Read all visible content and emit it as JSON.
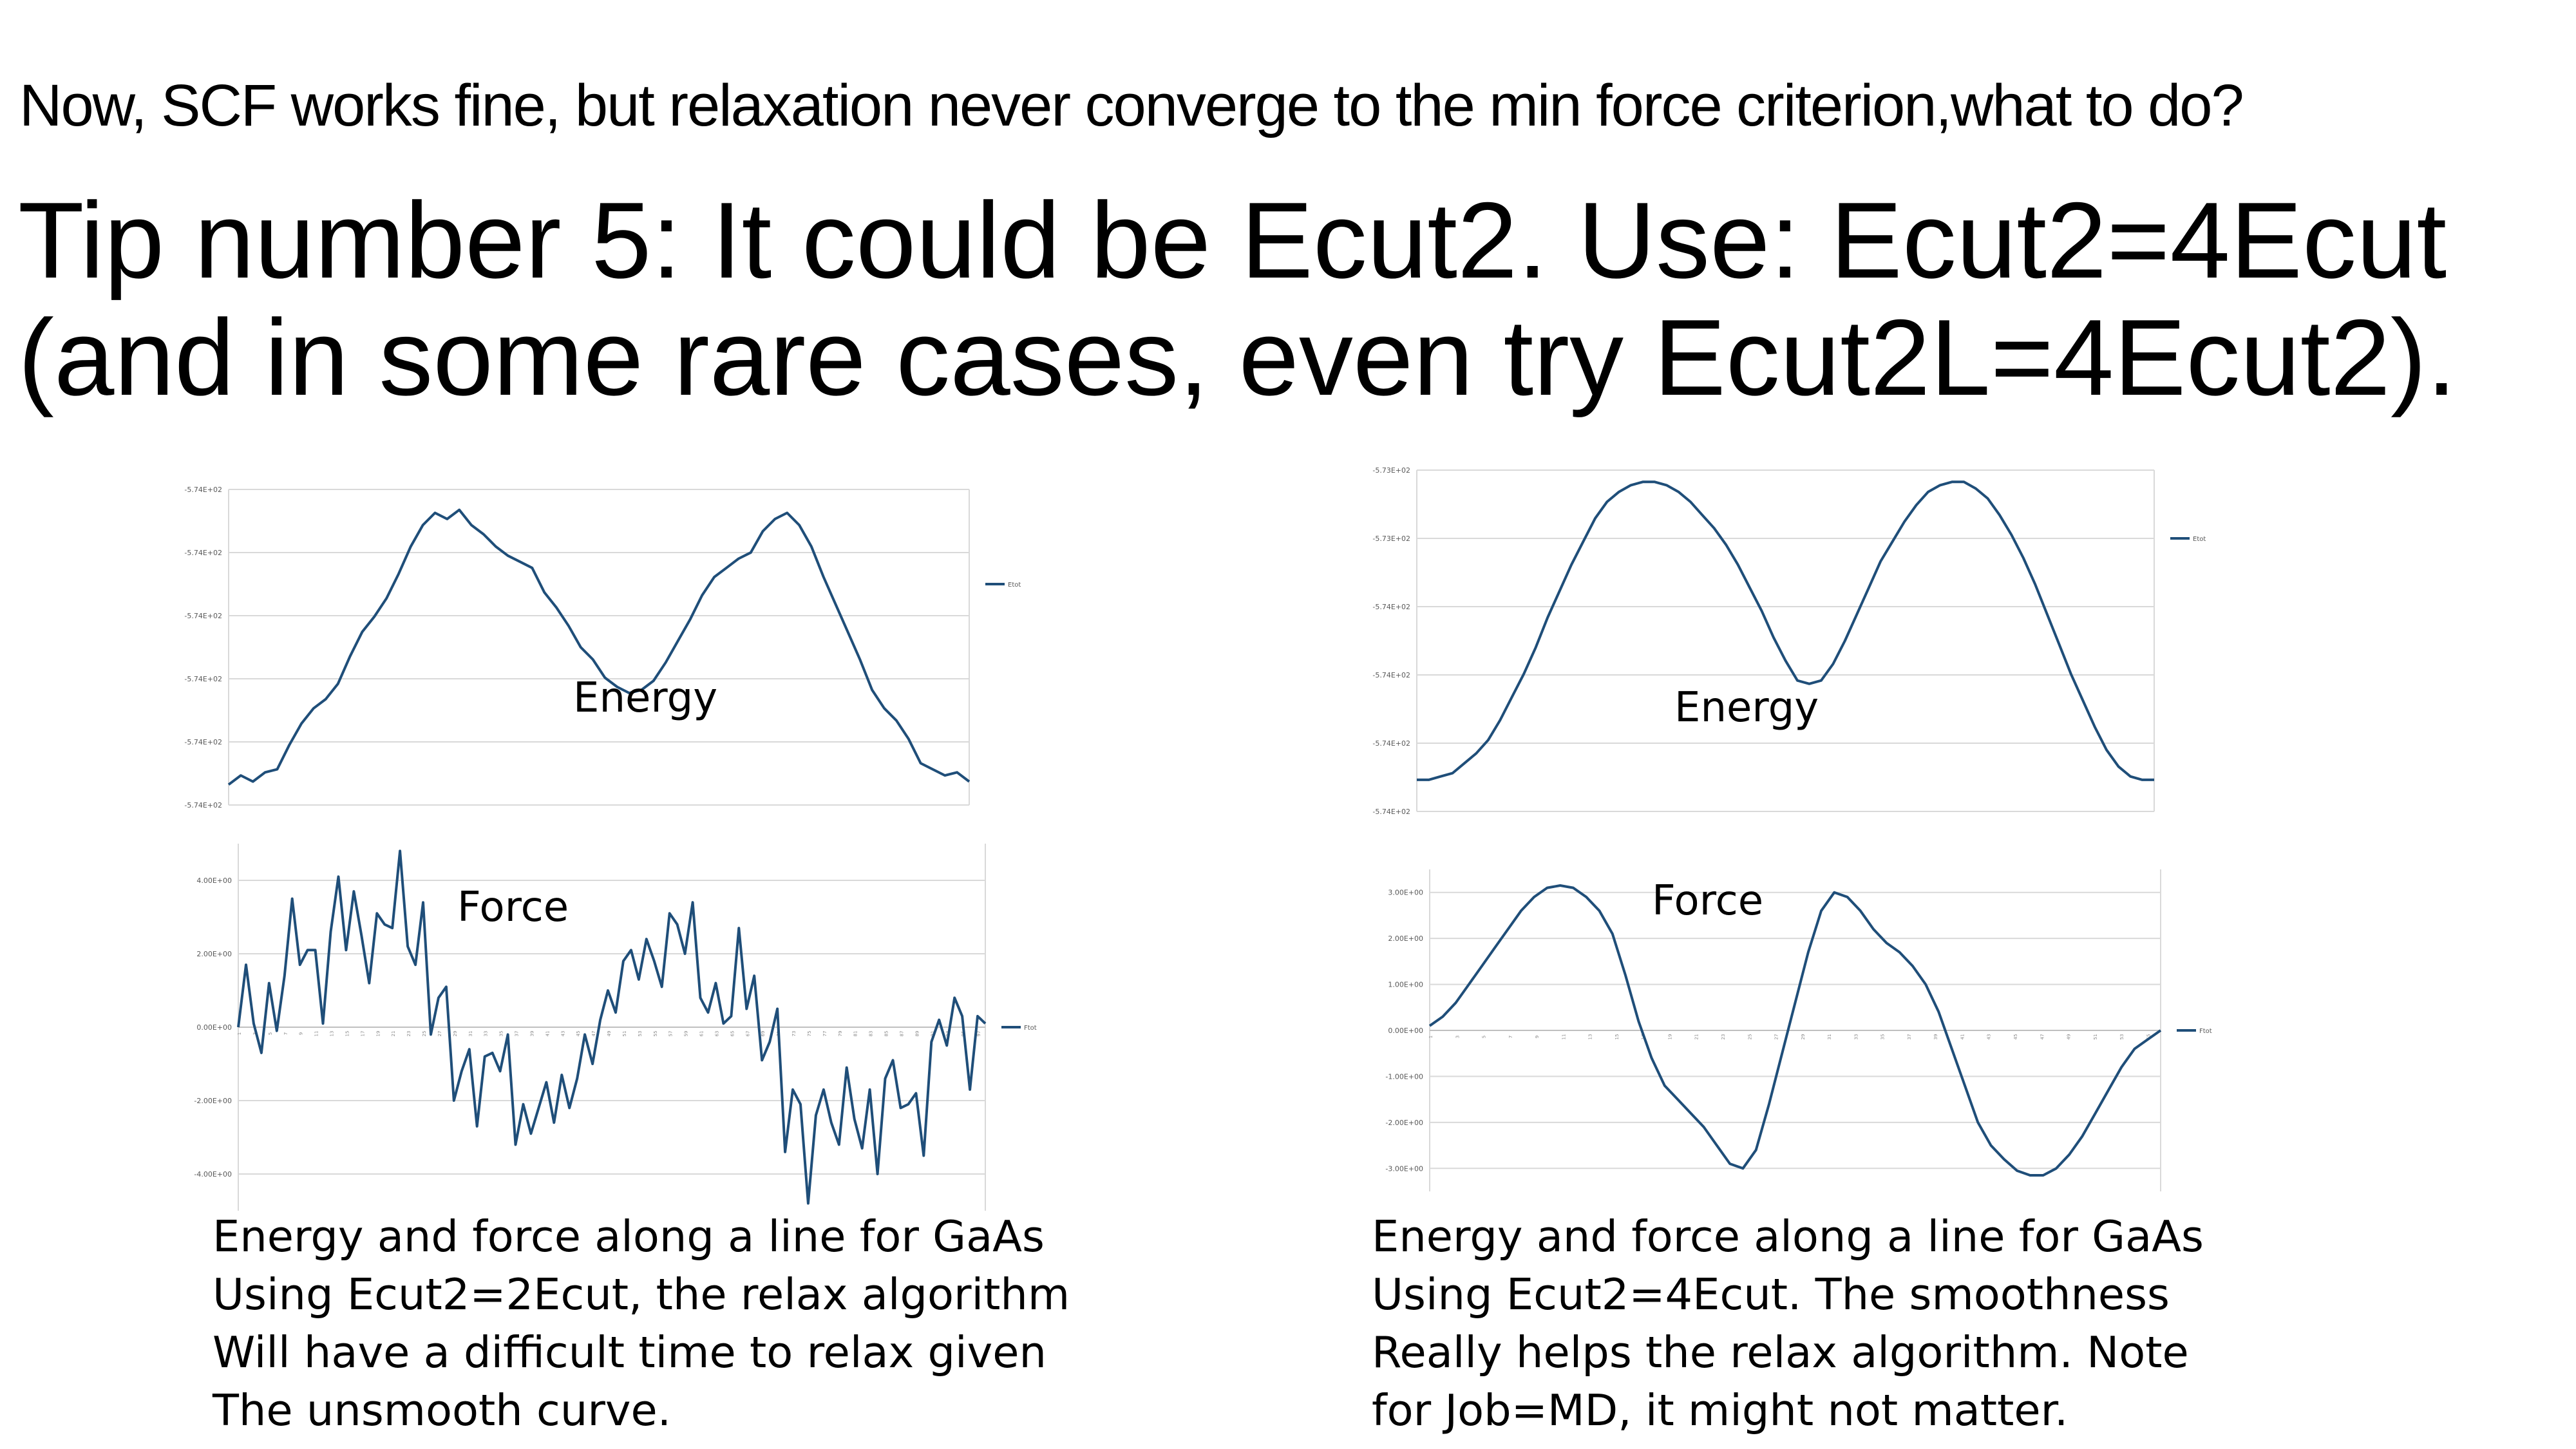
{
  "slide": {
    "question": "Now, SCF works fine, but relaxation never converge to the min force criterion,what to do?",
    "tip_lines": [
      "Tip number 5: It could be Ecut2. Use: Ecut2=4Ecut",
      "(and in some rare cases, even try Ecut2L=4Ecut2)."
    ]
  },
  "captions": {
    "left": [
      "Energy and force along a line for GaAs",
      "Using Ecut2=2Ecut, the relax algorithm",
      "Will have a difficult time to relax given",
      "The unsmooth curve."
    ],
    "right": [
      "Energy and force along a line for GaAs",
      "Using Ecut2=4Ecut. The smoothness",
      "Really helps the relax algorithm. Note",
      "for Job=MD, it might not matter."
    ]
  },
  "chart_data": [
    {
      "id": "left-energy",
      "type": "line",
      "label": "Energy",
      "color": "#1f4e79",
      "series": [
        {
          "name": "Etot",
          "values": [
            0.05,
            0.08,
            0.06,
            0.09,
            0.1,
            0.18,
            0.25,
            0.3,
            0.33,
            0.38,
            0.47,
            0.55,
            0.6,
            0.66,
            0.74,
            0.83,
            0.9,
            0.94,
            0.92,
            0.95,
            0.9,
            0.87,
            0.83,
            0.8,
            0.78,
            0.76,
            0.68,
            0.63,
            0.57,
            0.5,
            0.46,
            0.4,
            0.37,
            0.35,
            0.36,
            0.39,
            0.45,
            0.52,
            0.59,
            0.67,
            0.73,
            0.76,
            0.79,
            0.81,
            0.88,
            0.92,
            0.94,
            0.9,
            0.83,
            0.73,
            0.64,
            0.55,
            0.46,
            0.36,
            0.3,
            0.26,
            0.2,
            0.12,
            0.1,
            0.08,
            0.09,
            0.06
          ]
        }
      ],
      "yticks": [
        "-5.74E+02",
        "-5.74E+02",
        "-5.74E+02",
        "-5.74E+02",
        "-5.74E+02",
        "-5.74E+02"
      ],
      "legend_y": 0.7
    },
    {
      "id": "left-force",
      "type": "line",
      "label": "Force",
      "color": "#1f4e79",
      "series": [
        {
          "name": "Ftot",
          "values": [
            0.0,
            1.7,
            0.1,
            -0.7,
            1.2,
            -0.1,
            1.4,
            3.5,
            1.7,
            2.1,
            2.1,
            0.1,
            2.6,
            4.1,
            2.1,
            3.7,
            2.5,
            1.2,
            3.1,
            2.8,
            2.7,
            4.8,
            2.2,
            1.7,
            3.4,
            -0.2,
            0.8,
            1.1,
            -2.0,
            -1.2,
            -0.6,
            -2.7,
            -0.8,
            -0.7,
            -1.2,
            -0.2,
            -3.2,
            -2.1,
            -2.9,
            -2.2,
            -1.5,
            -2.6,
            -1.3,
            -2.2,
            -1.4,
            -0.2,
            -1.0,
            0.2,
            1.0,
            0.4,
            1.8,
            2.1,
            1.3,
            2.4,
            1.8,
            1.1,
            3.1,
            2.8,
            2.0,
            3.4,
            0.8,
            0.4,
            1.2,
            0.1,
            0.3,
            2.7,
            0.5,
            1.4,
            -0.9,
            -0.4,
            0.5,
            -3.4,
            -1.7,
            -2.1,
            -4.8,
            -2.4,
            -1.7,
            -2.6,
            -3.2,
            -1.1,
            -2.5,
            -3.3,
            -1.7,
            -4.0,
            -1.4,
            -0.9,
            -2.2,
            -2.1,
            -1.8,
            -3.5,
            -0.4,
            0.2,
            -0.5,
            0.8,
            0.3,
            -1.7,
            0.3,
            0.1
          ]
        }
      ],
      "ylim": [
        -5,
        5
      ],
      "yticks": [
        "4.00E+00",
        "2.00E+00",
        "0.00E+00",
        "-2.00E+00",
        "-4.00E+00"
      ],
      "ytick_values": [
        4,
        2,
        0,
        -2,
        -4
      ],
      "legend_y": 0.5
    },
    {
      "id": "right-energy",
      "type": "line",
      "label": "Energy",
      "color": "#1f4e79",
      "series": [
        {
          "name": "Etot",
          "values": [
            0.08,
            0.08,
            0.09,
            0.1,
            0.13,
            0.16,
            0.2,
            0.26,
            0.33,
            0.4,
            0.48,
            0.57,
            0.65,
            0.73,
            0.8,
            0.87,
            0.92,
            0.95,
            0.97,
            0.98,
            0.98,
            0.97,
            0.95,
            0.92,
            0.88,
            0.84,
            0.79,
            0.73,
            0.66,
            0.59,
            0.51,
            0.44,
            0.38,
            0.37,
            0.38,
            0.43,
            0.5,
            0.58,
            0.66,
            0.74,
            0.8,
            0.86,
            0.91,
            0.95,
            0.97,
            0.98,
            0.98,
            0.96,
            0.93,
            0.88,
            0.82,
            0.75,
            0.67,
            0.58,
            0.49,
            0.4,
            0.32,
            0.24,
            0.17,
            0.12,
            0.09,
            0.08,
            0.08
          ]
        }
      ],
      "yticks": [
        "-5.73E+02",
        "-5.73E+02",
        "-5.74E+02",
        "-5.74E+02",
        "-5.74E+02",
        "-5.74E+02"
      ],
      "legend_y": 0.8
    },
    {
      "id": "right-force",
      "type": "line",
      "label": "Force",
      "color": "#1f4e79",
      "series": [
        {
          "name": "Ftot",
          "values": [
            0.1,
            0.3,
            0.6,
            1.0,
            1.4,
            1.8,
            2.2,
            2.6,
            2.9,
            3.1,
            3.15,
            3.1,
            2.9,
            2.6,
            2.1,
            1.2,
            0.2,
            -0.6,
            -1.2,
            -1.5,
            -1.8,
            -2.1,
            -2.5,
            -2.9,
            -3.0,
            -2.6,
            -1.6,
            -0.5,
            0.6,
            1.7,
            2.6,
            3.0,
            2.9,
            2.6,
            2.2,
            1.9,
            1.7,
            1.4,
            1.0,
            0.4,
            -0.4,
            -1.2,
            -2.0,
            -2.5,
            -2.8,
            -3.05,
            -3.15,
            -3.15,
            -3.0,
            -2.7,
            -2.3,
            -1.8,
            -1.3,
            -0.8,
            -0.4,
            -0.2,
            0.0
          ]
        }
      ],
      "ylim": [
        -3.5,
        3.5
      ],
      "yticks": [
        "3.00E+00",
        "2.00E+00",
        "1.00E+00",
        "0.00E+00",
        "-1.00E+00",
        "-2.00E+00",
        "-3.00E+00"
      ],
      "ytick_values": [
        3,
        2,
        1,
        0,
        -1,
        -2,
        -3
      ],
      "legend_y": 0.5
    }
  ]
}
